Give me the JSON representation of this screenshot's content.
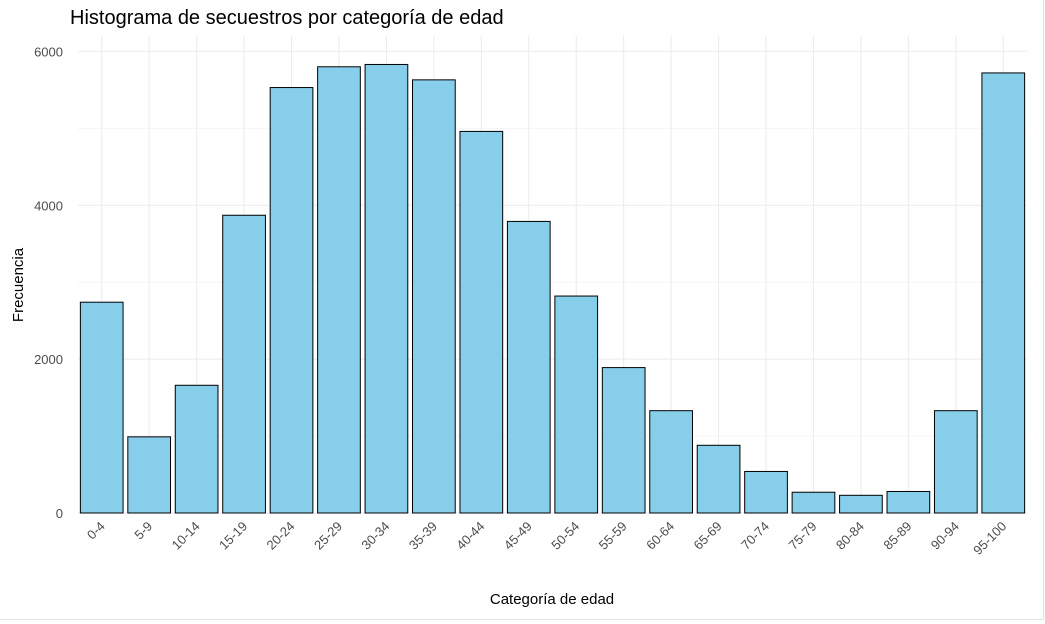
{
  "chart_data": {
    "type": "bar",
    "title": "Histograma de secuestros por categoría de edad",
    "xlabel": "Categoría de edad",
    "ylabel": "Frecuencia",
    "categories": [
      "0-4",
      "5-9",
      "10-14",
      "15-19",
      "20-24",
      "25-29",
      "30-34",
      "35-39",
      "40-44",
      "45-49",
      "50-54",
      "55-59",
      "60-64",
      "65-69",
      "70-74",
      "75-79",
      "80-84",
      "85-89",
      "90-94",
      "95-100"
    ],
    "values": [
      2740,
      990,
      1660,
      3870,
      5530,
      5800,
      5830,
      5630,
      4960,
      3790,
      2820,
      1890,
      1330,
      880,
      540,
      270,
      230,
      280,
      1330,
      5720
    ],
    "ylim": [
      0,
      6200
    ],
    "yticks": [
      0,
      2000,
      4000,
      6000
    ],
    "grid": true,
    "legend": "none",
    "colors": {
      "bar_fill": "#87CEEB",
      "bar_stroke": "#000000",
      "grid_major": "#ebebeb",
      "grid_minor": "#f5f5f5"
    }
  }
}
